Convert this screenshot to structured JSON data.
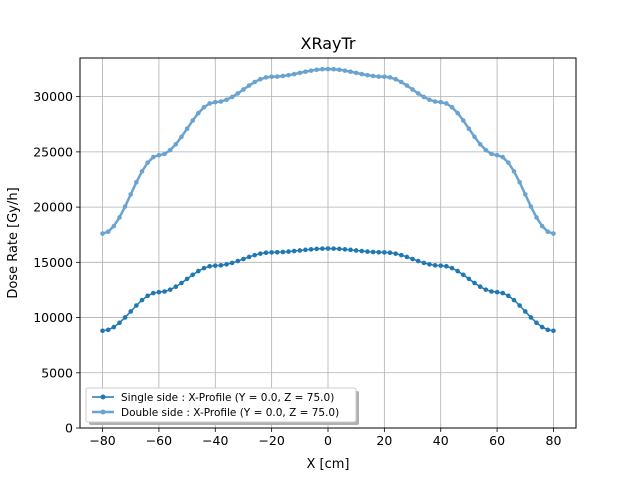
{
  "chart_data": {
    "type": "line",
    "title": "XRayTr",
    "xlabel": "X [cm]",
    "ylabel": "Dose Rate [Gy/h]",
    "xlim": [
      -88,
      88
    ],
    "ylim": [
      0,
      33500
    ],
    "xticks": [
      -80,
      -60,
      -40,
      -20,
      0,
      20,
      40,
      60,
      80
    ],
    "yticks": [
      0,
      5000,
      10000,
      15000,
      20000,
      25000,
      30000
    ],
    "grid": true,
    "legend_position": "lower-left",
    "x": [
      -80,
      -60,
      -40,
      -20,
      0,
      20,
      40,
      60,
      80
    ],
    "series": [
      {
        "name": "Single side : X-Profile (Y = 0.0, Z = 75.0)",
        "color": "#1f77b4",
        "values": [
          8800,
          12300,
          14700,
          15900,
          16250,
          15900,
          14700,
          12300,
          8800
        ]
      },
      {
        "name": "Double side : X-Profile (Y = 0.0, Z = 75.0)",
        "color": "#6ba3d0",
        "values": [
          17600,
          24700,
          29500,
          31800,
          32500,
          31800,
          29500,
          24700,
          17600
        ]
      }
    ]
  }
}
